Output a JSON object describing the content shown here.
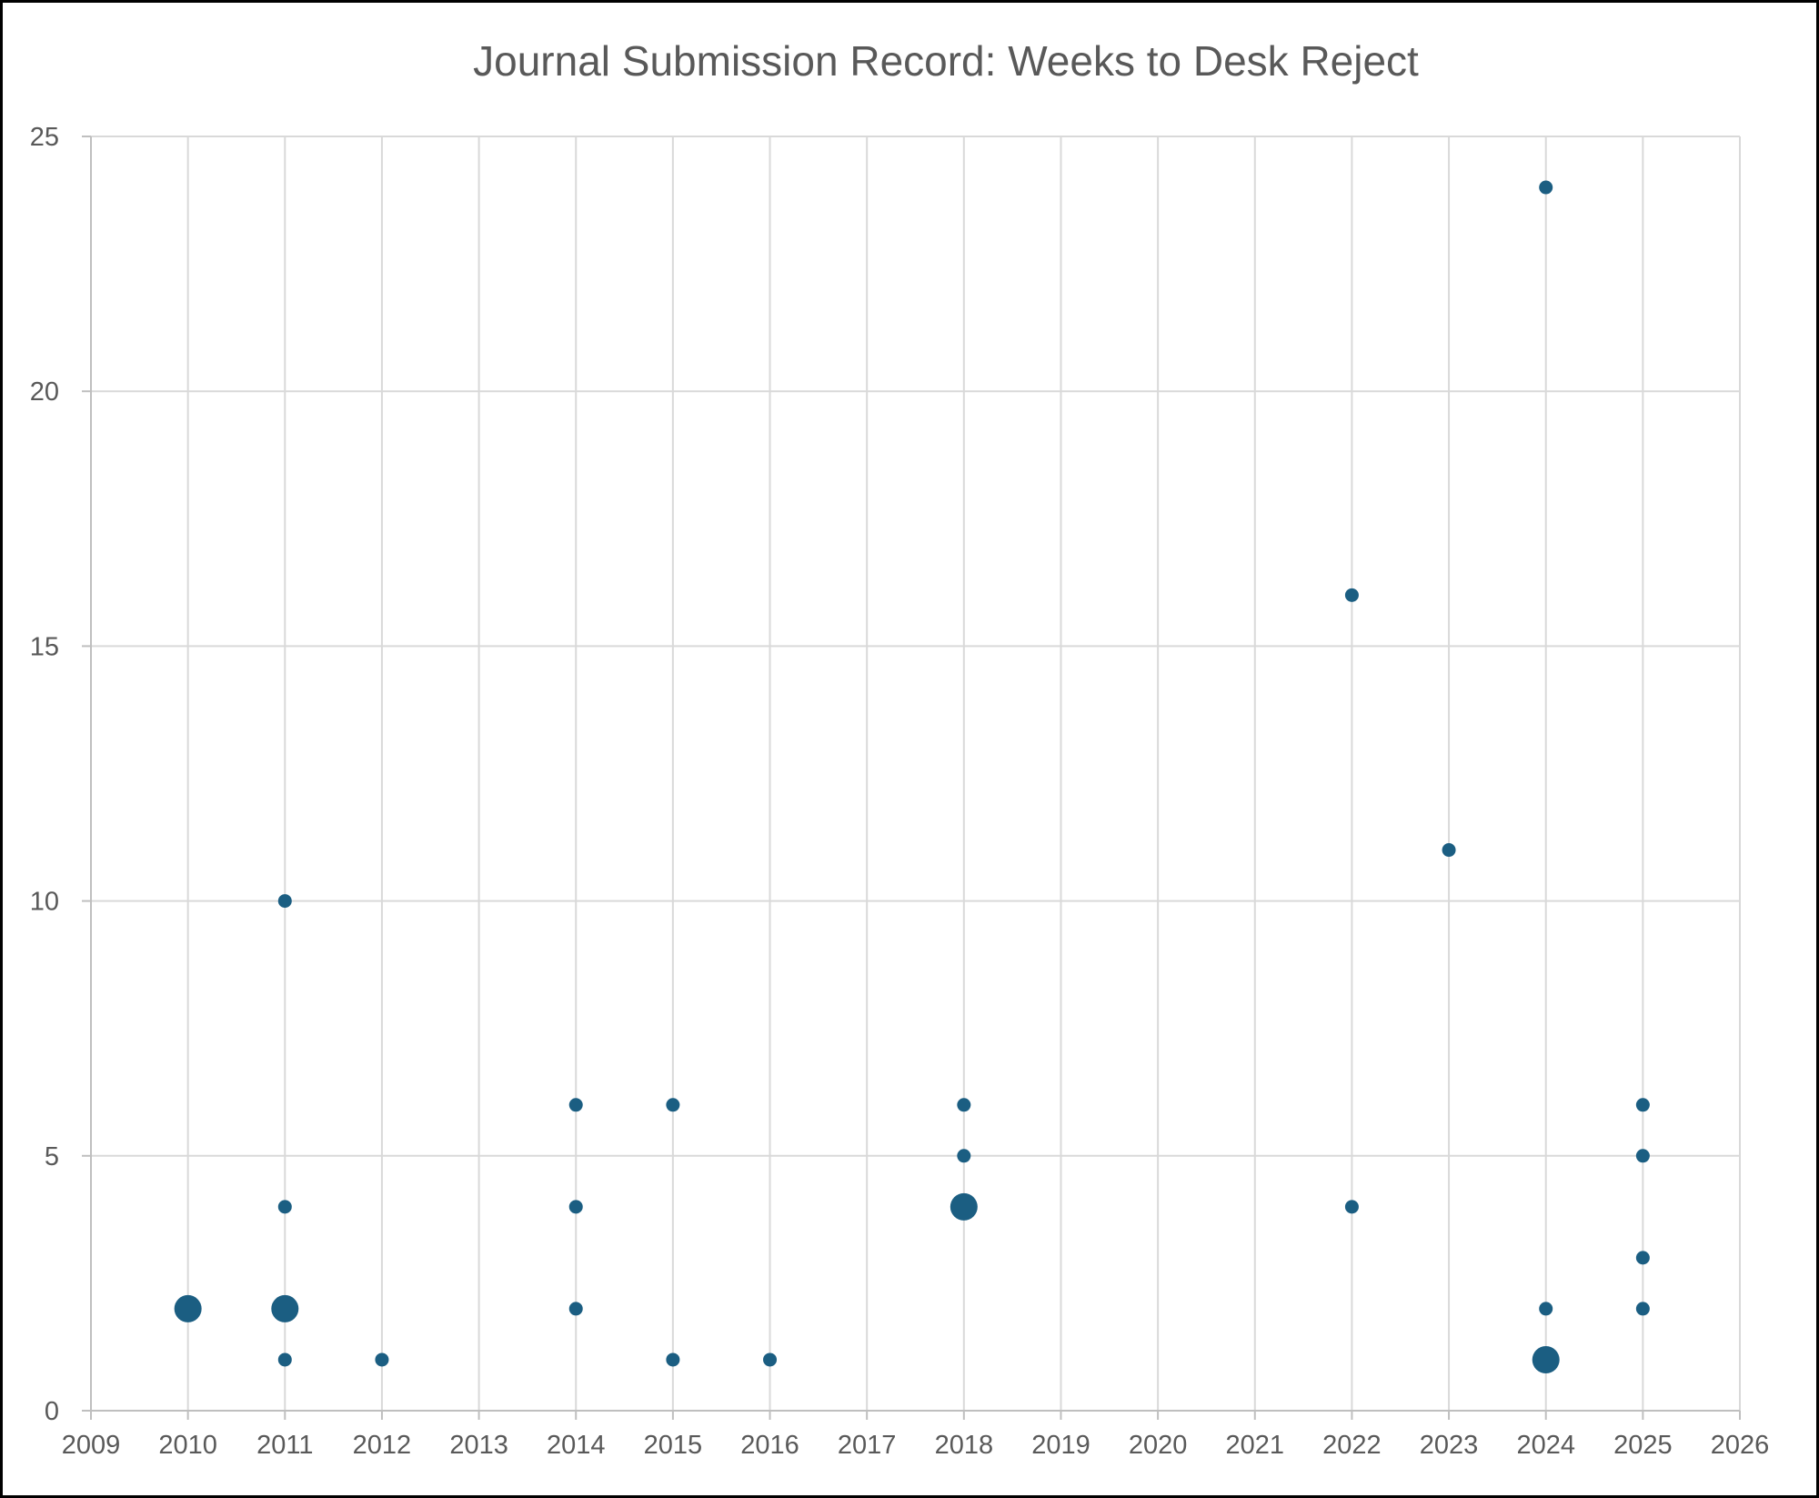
{
  "chart_data": {
    "type": "scatter",
    "title": "Journal Submission Record: Weeks to Desk Reject",
    "xlabel": "",
    "ylabel": "",
    "xlim": [
      2009,
      2026
    ],
    "ylim": [
      0,
      25
    ],
    "xticks": [
      "2009",
      "2010",
      "2011",
      "2012",
      "2013",
      "2014",
      "2015",
      "2016",
      "2017",
      "2018",
      "2019",
      "2020",
      "2021",
      "2022",
      "2023",
      "2024",
      "2025",
      "2026"
    ],
    "yticks": [
      "0",
      "5",
      "10",
      "15",
      "20",
      "25"
    ],
    "grid": true,
    "legend": "none",
    "marker_color": "#1B5E82",
    "points": [
      {
        "x": 2010,
        "y": 2,
        "size": "large"
      },
      {
        "x": 2011,
        "y": 10,
        "size": "small"
      },
      {
        "x": 2011,
        "y": 4,
        "size": "small"
      },
      {
        "x": 2011,
        "y": 2,
        "size": "large"
      },
      {
        "x": 2011,
        "y": 1,
        "size": "small"
      },
      {
        "x": 2012,
        "y": 1,
        "size": "small"
      },
      {
        "x": 2014,
        "y": 6,
        "size": "small"
      },
      {
        "x": 2014,
        "y": 4,
        "size": "small"
      },
      {
        "x": 2014,
        "y": 2,
        "size": "small"
      },
      {
        "x": 2015,
        "y": 6,
        "size": "small"
      },
      {
        "x": 2015,
        "y": 1,
        "size": "small"
      },
      {
        "x": 2016,
        "y": 1,
        "size": "small"
      },
      {
        "x": 2018,
        "y": 6,
        "size": "small"
      },
      {
        "x": 2018,
        "y": 5,
        "size": "small"
      },
      {
        "x": 2018,
        "y": 4,
        "size": "large"
      },
      {
        "x": 2022,
        "y": 16,
        "size": "small"
      },
      {
        "x": 2022,
        "y": 4,
        "size": "small"
      },
      {
        "x": 2023,
        "y": 11,
        "size": "small"
      },
      {
        "x": 2024,
        "y": 24,
        "size": "small"
      },
      {
        "x": 2024,
        "y": 2,
        "size": "small"
      },
      {
        "x": 2024,
        "y": 1,
        "size": "large"
      },
      {
        "x": 2025,
        "y": 6,
        "size": "small"
      },
      {
        "x": 2025,
        "y": 5,
        "size": "small"
      },
      {
        "x": 2025,
        "y": 3,
        "size": "small"
      },
      {
        "x": 2025,
        "y": 2,
        "size": "small"
      }
    ]
  }
}
